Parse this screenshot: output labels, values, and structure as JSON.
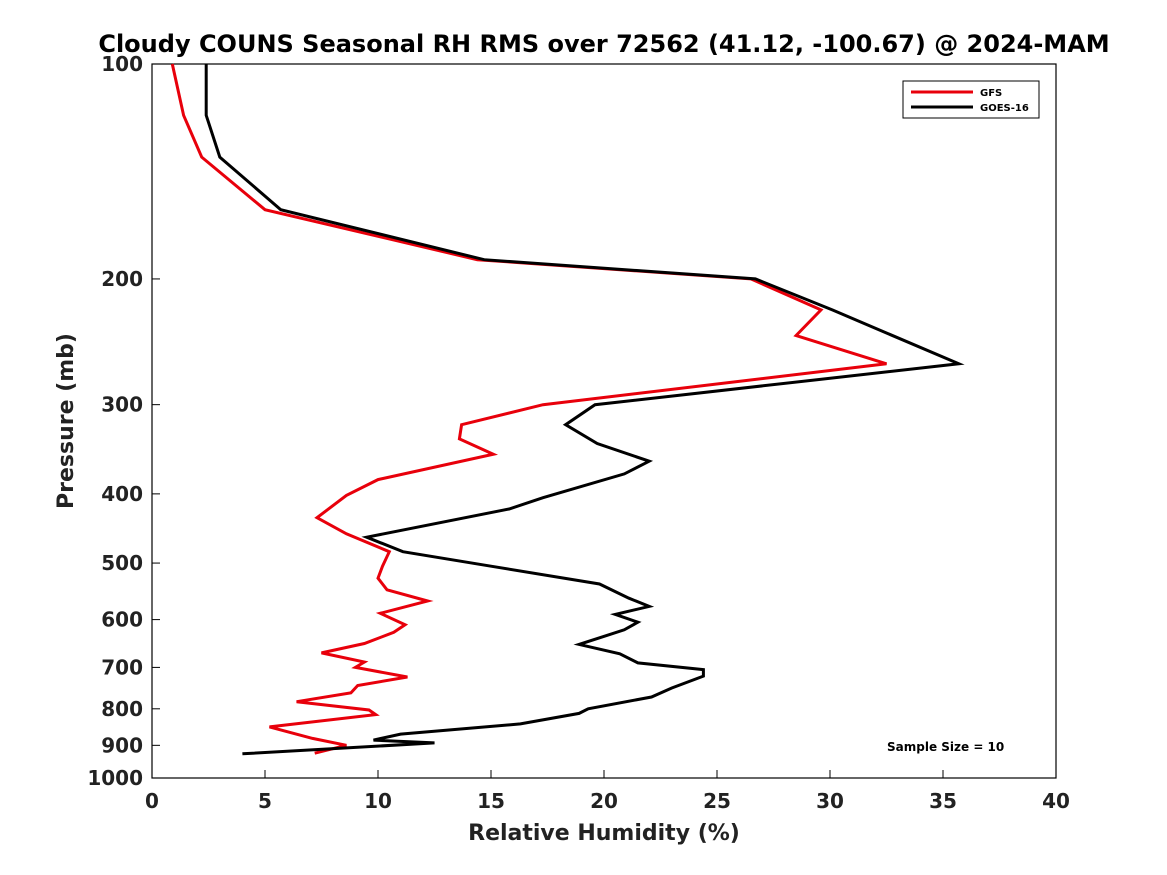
{
  "chart_data": {
    "type": "line",
    "title": "Cloudy COUNS Seasonal RH RMS over 72562 (41.12, -100.67) @ 2024-MAM",
    "xlabel": "Relative Humidity (%)",
    "ylabel": "Pressure (mb)",
    "xlim": [
      0,
      40
    ],
    "ylim": [
      100,
      1000
    ],
    "y_scale": "log",
    "y_reversed": true,
    "xticks": [
      "0",
      "5",
      "10",
      "15",
      "20",
      "25",
      "30",
      "35",
      "40"
    ],
    "yticks": [
      "100",
      "200",
      "300",
      "400",
      "500",
      "600",
      "700",
      "800",
      "900",
      "1000"
    ],
    "legend_position": "top-right",
    "annotation": "Sample Size = 10",
    "series": [
      {
        "name": "GFS",
        "color": "#e8000b",
        "points": [
          [
            0.9,
            100
          ],
          [
            1.4,
            118
          ],
          [
            2.2,
            135
          ],
          [
            5.0,
            160
          ],
          [
            14.4,
            188
          ],
          [
            26.5,
            200
          ],
          [
            29.6,
            221
          ],
          [
            28.5,
            240
          ],
          [
            32.5,
            263
          ],
          [
            17.3,
            300
          ],
          [
            13.7,
            320
          ],
          [
            13.6,
            335
          ],
          [
            15.1,
            352
          ],
          [
            10.0,
            382
          ],
          [
            8.6,
            402
          ],
          [
            7.3,
            432
          ],
          [
            8.6,
            455
          ],
          [
            10.5,
            482
          ],
          [
            10.2,
            505
          ],
          [
            10.0,
            525
          ],
          [
            10.4,
            545
          ],
          [
            12.2,
            565
          ],
          [
            10.1,
            588
          ],
          [
            11.2,
            610
          ],
          [
            10.7,
            625
          ],
          [
            9.4,
            648
          ],
          [
            7.5,
            668
          ],
          [
            9.4,
            688
          ],
          [
            9.0,
            700
          ],
          [
            11.3,
            722
          ],
          [
            9.1,
            742
          ],
          [
            8.8,
            760
          ],
          [
            6.4,
            782
          ],
          [
            9.6,
            803
          ],
          [
            9.9,
            815
          ],
          [
            5.2,
            848
          ],
          [
            7.1,
            880
          ],
          [
            8.6,
            900
          ],
          [
            7.2,
            923
          ]
        ]
      },
      {
        "name": "GOES-16",
        "color": "#000000",
        "points": [
          [
            2.4,
            100
          ],
          [
            2.4,
            118
          ],
          [
            3.0,
            135
          ],
          [
            5.7,
            160
          ],
          [
            14.7,
            188
          ],
          [
            26.7,
            200
          ],
          [
            30.1,
            221
          ],
          [
            35.7,
            263
          ],
          [
            19.6,
            300
          ],
          [
            18.3,
            320
          ],
          [
            19.7,
            340
          ],
          [
            22.0,
            360
          ],
          [
            20.9,
            375
          ],
          [
            17.3,
            405
          ],
          [
            15.8,
            420
          ],
          [
            9.5,
            460
          ],
          [
            11.1,
            482
          ],
          [
            15.0,
            505
          ],
          [
            19.8,
            535
          ],
          [
            21.1,
            560
          ],
          [
            22.0,
            575
          ],
          [
            20.5,
            590
          ],
          [
            21.5,
            605
          ],
          [
            20.9,
            620
          ],
          [
            18.9,
            650
          ],
          [
            20.7,
            670
          ],
          [
            21.5,
            690
          ],
          [
            24.4,
            705
          ],
          [
            24.4,
            720
          ],
          [
            23.0,
            748
          ],
          [
            22.1,
            770
          ],
          [
            19.3,
            800
          ],
          [
            18.9,
            812
          ],
          [
            16.3,
            840
          ],
          [
            11.0,
            868
          ],
          [
            9.8,
            885
          ],
          [
            12.5,
            893
          ],
          [
            4.0,
            925
          ]
        ]
      }
    ]
  }
}
